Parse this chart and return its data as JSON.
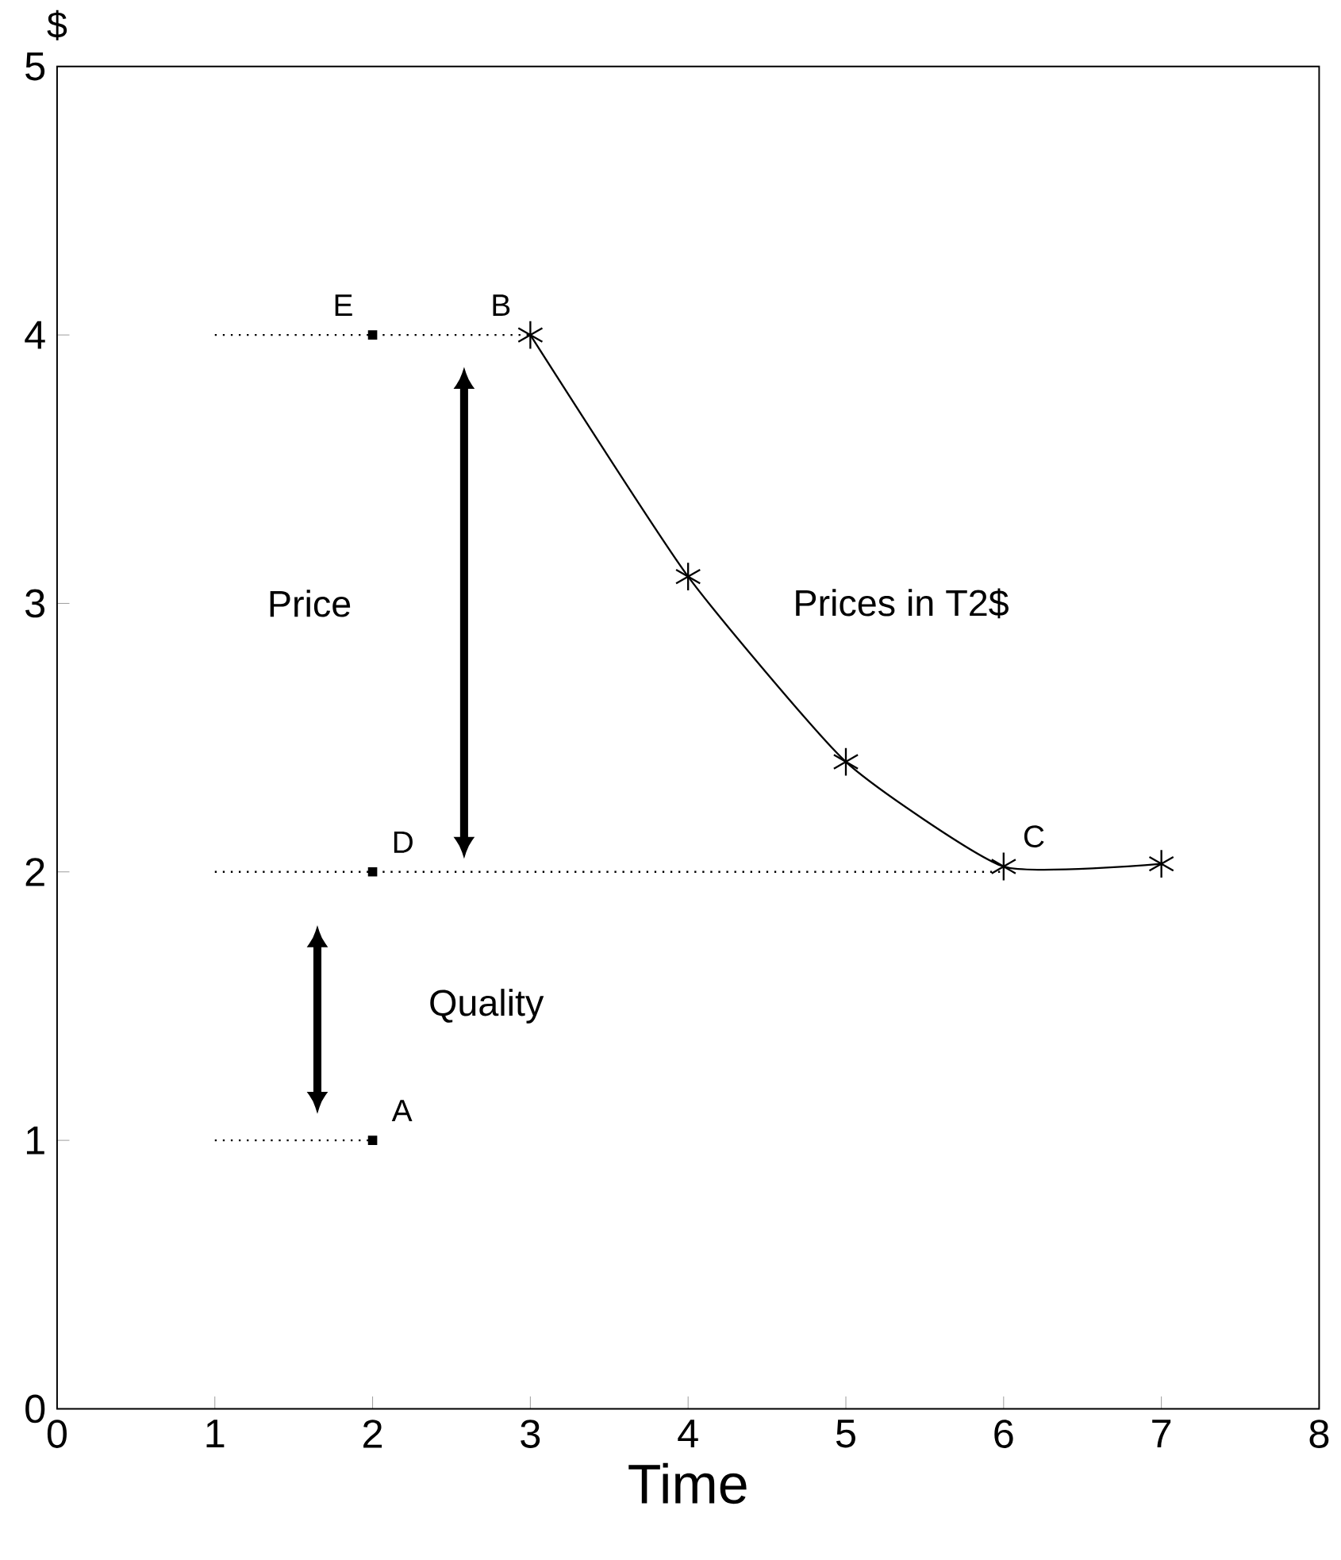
{
  "chart_data": {
    "type": "line",
    "xlabel": "Time",
    "ylabel": "$",
    "xlim": [
      0,
      8
    ],
    "ylim": [
      0,
      5
    ],
    "xticks": [
      0,
      1,
      2,
      3,
      4,
      5,
      6,
      7,
      8
    ],
    "yticks": [
      0,
      1,
      2,
      3,
      4,
      5
    ],
    "grid": false,
    "series": [
      {
        "color": "#000000",
        "marker": "cross",
        "line_style": "solid",
        "x": [
          3,
          4,
          5,
          6,
          7
        ],
        "values": [
          4,
          3.1,
          2.41,
          2.02,
          2.03
        ]
      },
      {
        "type": "scatter",
        "color": "#000000",
        "marker": "square",
        "x": [
          2,
          2,
          2
        ],
        "values": [
          1,
          2,
          4
        ]
      },
      {
        "color": "#000000",
        "marker": "none",
        "line_style": "dotted",
        "x": [
          1,
          3
        ],
        "values": [
          4,
          4
        ]
      },
      {
        "color": "#000000",
        "marker": "none",
        "line_style": "dotted",
        "x": [
          1,
          6
        ],
        "values": [
          2,
          2
        ]
      },
      {
        "color": "#000000",
        "marker": "none",
        "line_style": "dotted",
        "x": [
          1,
          2
        ],
        "values": [
          1,
          1
        ]
      }
    ],
    "annotations": [
      "Price",
      "Quality",
      "Prices in T2$",
      {
        "text": "E",
        "x": 2,
        "y": 4
      },
      {
        "text": "B",
        "x": 3,
        "y": 4
      },
      {
        "text": "D",
        "x": 2,
        "y": 2
      },
      {
        "text": "C",
        "x": 6,
        "y": 2.02
      },
      {
        "text": "A",
        "x": 2,
        "y": 1
      }
    ]
  }
}
